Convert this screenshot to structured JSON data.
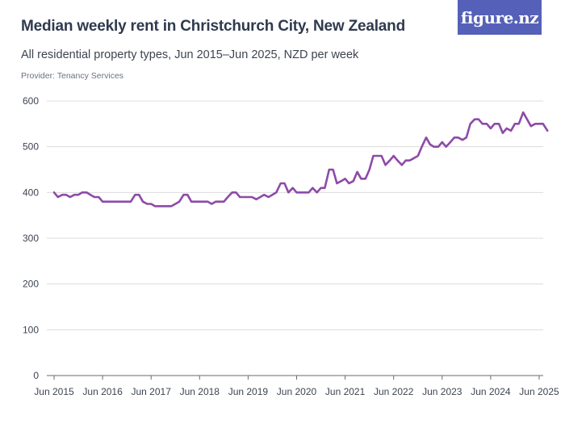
{
  "header": {
    "title": "Median weekly rent in Christchurch City, New Zealand",
    "subtitle": "All residential property types, Jun 2015–Jun 2025, NZD per week",
    "provider": "Provider: Tenancy Services",
    "logo_text": "figure.nz"
  },
  "colors": {
    "line": "#8e4aa8",
    "grid": "#dcdcdc",
    "axis": "#6b6b6b",
    "logo_bg": "#5560b8"
  },
  "chart_data": {
    "type": "line",
    "title": "Median weekly rent in Christchurch City, New Zealand",
    "subtitle": "All residential property types, Jun 2015–Jun 2025, NZD per week",
    "xlabel": "",
    "ylabel": "",
    "ylim": [
      0,
      600
    ],
    "xlim": [
      2015.5,
      2025.5
    ],
    "grid": true,
    "legend": "none",
    "y_ticks": [
      {
        "value": 0,
        "label": "0"
      },
      {
        "value": 100,
        "label": "100"
      },
      {
        "value": 200,
        "label": "200"
      },
      {
        "value": 300,
        "label": "300"
      },
      {
        "value": 400,
        "label": "400"
      },
      {
        "value": 500,
        "label": "500"
      },
      {
        "value": 600,
        "label": "600"
      }
    ],
    "x_ticks": [
      {
        "value": 2015.5,
        "label": "Jun 2015"
      },
      {
        "value": 2016.5,
        "label": "Jun 2016"
      },
      {
        "value": 2017.5,
        "label": "Jun 2017"
      },
      {
        "value": 2018.5,
        "label": "Jun 2018"
      },
      {
        "value": 2019.5,
        "label": "Jun 2019"
      },
      {
        "value": 2020.5,
        "label": "Jun 2020"
      },
      {
        "value": 2021.5,
        "label": "Jun 2021"
      },
      {
        "value": 2022.5,
        "label": "Jun 2022"
      },
      {
        "value": 2023.5,
        "label": "Jun 2023"
      },
      {
        "value": 2024.5,
        "label": "Jun 2024"
      },
      {
        "value": 2025.5,
        "label": "Jun 2025"
      }
    ],
    "series": [
      {
        "values": [
          [
            2015.5,
            400
          ],
          [
            2015.58,
            390
          ],
          [
            2015.67,
            395
          ],
          [
            2015.75,
            395
          ],
          [
            2015.83,
            390
          ],
          [
            2015.92,
            395
          ],
          [
            2016.0,
            395
          ],
          [
            2016.08,
            400
          ],
          [
            2016.17,
            400
          ],
          [
            2016.25,
            395
          ],
          [
            2016.33,
            390
          ],
          [
            2016.42,
            390
          ],
          [
            2016.5,
            380
          ],
          [
            2016.58,
            380
          ],
          [
            2016.67,
            380
          ],
          [
            2016.75,
            380
          ],
          [
            2016.83,
            380
          ],
          [
            2016.92,
            380
          ],
          [
            2017.0,
            380
          ],
          [
            2017.08,
            380
          ],
          [
            2017.17,
            395
          ],
          [
            2017.25,
            395
          ],
          [
            2017.33,
            380
          ],
          [
            2017.42,
            375
          ],
          [
            2017.5,
            375
          ],
          [
            2017.58,
            370
          ],
          [
            2017.67,
            370
          ],
          [
            2017.75,
            370
          ],
          [
            2017.83,
            370
          ],
          [
            2017.92,
            370
          ],
          [
            2018.0,
            375
          ],
          [
            2018.08,
            380
          ],
          [
            2018.17,
            395
          ],
          [
            2018.25,
            395
          ],
          [
            2018.33,
            380
          ],
          [
            2018.42,
            380
          ],
          [
            2018.5,
            380
          ],
          [
            2018.58,
            380
          ],
          [
            2018.67,
            380
          ],
          [
            2018.75,
            375
          ],
          [
            2018.83,
            380
          ],
          [
            2018.92,
            380
          ],
          [
            2019.0,
            380
          ],
          [
            2019.08,
            390
          ],
          [
            2019.17,
            400
          ],
          [
            2019.25,
            400
          ],
          [
            2019.33,
            390
          ],
          [
            2019.42,
            390
          ],
          [
            2019.5,
            390
          ],
          [
            2019.58,
            390
          ],
          [
            2019.67,
            385
          ],
          [
            2019.75,
            390
          ],
          [
            2019.83,
            395
          ],
          [
            2019.92,
            390
          ],
          [
            2020.0,
            395
          ],
          [
            2020.08,
            400
          ],
          [
            2020.17,
            420
          ],
          [
            2020.25,
            420
          ],
          [
            2020.33,
            400
          ],
          [
            2020.42,
            410
          ],
          [
            2020.5,
            400
          ],
          [
            2020.58,
            400
          ],
          [
            2020.67,
            400
          ],
          [
            2020.75,
            400
          ],
          [
            2020.83,
            410
          ],
          [
            2020.92,
            400
          ],
          [
            2021.0,
            410
          ],
          [
            2021.08,
            410
          ],
          [
            2021.17,
            450
          ],
          [
            2021.25,
            450
          ],
          [
            2021.33,
            420
          ],
          [
            2021.42,
            425
          ],
          [
            2021.5,
            430
          ],
          [
            2021.58,
            420
          ],
          [
            2021.67,
            425
          ],
          [
            2021.75,
            445
          ],
          [
            2021.83,
            430
          ],
          [
            2021.92,
            430
          ],
          [
            2022.0,
            450
          ],
          [
            2022.08,
            480
          ],
          [
            2022.17,
            480
          ],
          [
            2022.25,
            480
          ],
          [
            2022.33,
            460
          ],
          [
            2022.42,
            470
          ],
          [
            2022.5,
            480
          ],
          [
            2022.58,
            470
          ],
          [
            2022.67,
            460
          ],
          [
            2022.75,
            470
          ],
          [
            2022.83,
            470
          ],
          [
            2022.92,
            475
          ],
          [
            2023.0,
            480
          ],
          [
            2023.08,
            500
          ],
          [
            2023.17,
            520
          ],
          [
            2023.25,
            505
          ],
          [
            2023.33,
            500
          ],
          [
            2023.42,
            500
          ],
          [
            2023.5,
            510
          ],
          [
            2023.58,
            500
          ],
          [
            2023.67,
            510
          ],
          [
            2023.75,
            520
          ],
          [
            2023.83,
            520
          ],
          [
            2023.92,
            515
          ],
          [
            2024.0,
            520
          ],
          [
            2024.08,
            550
          ],
          [
            2024.17,
            560
          ],
          [
            2024.25,
            560
          ],
          [
            2024.33,
            550
          ],
          [
            2024.42,
            550
          ],
          [
            2024.5,
            540
          ],
          [
            2024.58,
            550
          ],
          [
            2024.67,
            550
          ],
          [
            2024.75,
            530
          ],
          [
            2024.83,
            540
          ],
          [
            2024.92,
            535
          ],
          [
            2025.0,
            550
          ],
          [
            2025.08,
            550
          ],
          [
            2025.17,
            575
          ],
          [
            2025.25,
            560
          ],
          [
            2025.33,
            545
          ],
          [
            2025.42,
            550
          ],
          [
            2025.5,
            550
          ],
          [
            2025.58,
            550
          ],
          [
            2025.67,
            535
          ]
        ]
      }
    ]
  }
}
